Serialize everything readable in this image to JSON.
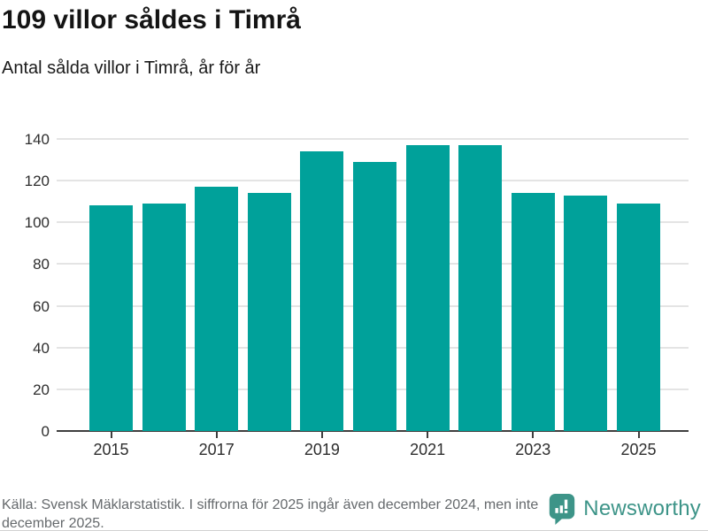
{
  "chart_data": {
    "type": "bar",
    "title": "109 villor såldes i Timrå",
    "subtitle": "Antal sålda villor i Timrå, år för år",
    "categories": [
      "2015",
      "2016",
      "2017",
      "2018",
      "2019",
      "2020",
      "2021",
      "2022",
      "2023",
      "2024",
      "2025"
    ],
    "values": [
      108,
      109,
      117,
      114,
      134,
      129,
      137,
      137,
      114,
      113,
      109
    ],
    "xlabel": "",
    "ylabel": "",
    "ylim": [
      0,
      140
    ],
    "yticks": [
      0,
      20,
      40,
      60,
      80,
      100,
      120,
      140
    ],
    "xtick_labels": [
      "2015",
      "2017",
      "2019",
      "2021",
      "2023",
      "2025"
    ],
    "grid": true,
    "legend": false,
    "bar_color": "#00a19a"
  },
  "footer": {
    "source": "Källa: Svensk Mäklarstatistik. I siffrorna för 2025 ingår även december 2024, men inte december 2025.",
    "brand": "Newsworthy",
    "brand_color": "#3d9488"
  }
}
